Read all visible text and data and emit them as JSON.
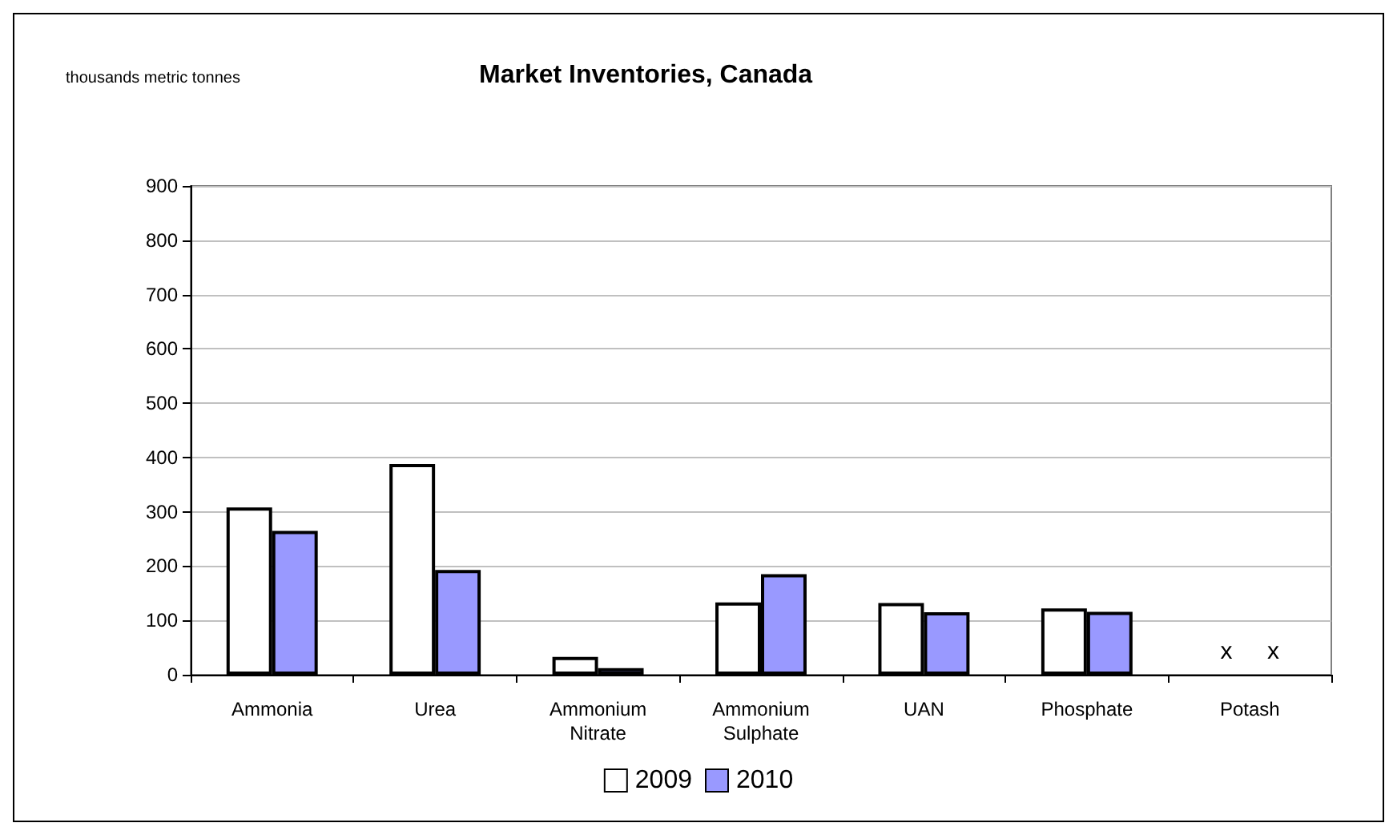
{
  "chart_data": {
    "type": "bar",
    "title": "Market Inventories, Canada",
    "annotations": [
      "thousands metric tonnes"
    ],
    "categories": [
      "Ammonia",
      "Urea",
      "Ammonium\nNitrate",
      "Ammonium\nSulphate",
      "UAN",
      "Phosphate",
      "Potash"
    ],
    "series": [
      {
        "name": "2009",
        "color": "#ffffff",
        "values": [
          308,
          388,
          33,
          133,
          132,
          122,
          null
        ],
        "value_labels": [
          null,
          null,
          null,
          null,
          null,
          null,
          "x"
        ]
      },
      {
        "name": "2010",
        "color": "#9999ff",
        "values": [
          265,
          193,
          12,
          185,
          115,
          116,
          null
        ],
        "value_labels": [
          null,
          null,
          null,
          null,
          null,
          null,
          "x"
        ]
      }
    ],
    "ylim": [
      0,
      900
    ],
    "yticks": [
      0,
      100,
      200,
      300,
      400,
      500,
      600,
      700,
      800,
      900
    ],
    "grid": "y",
    "legend": "bottom"
  }
}
